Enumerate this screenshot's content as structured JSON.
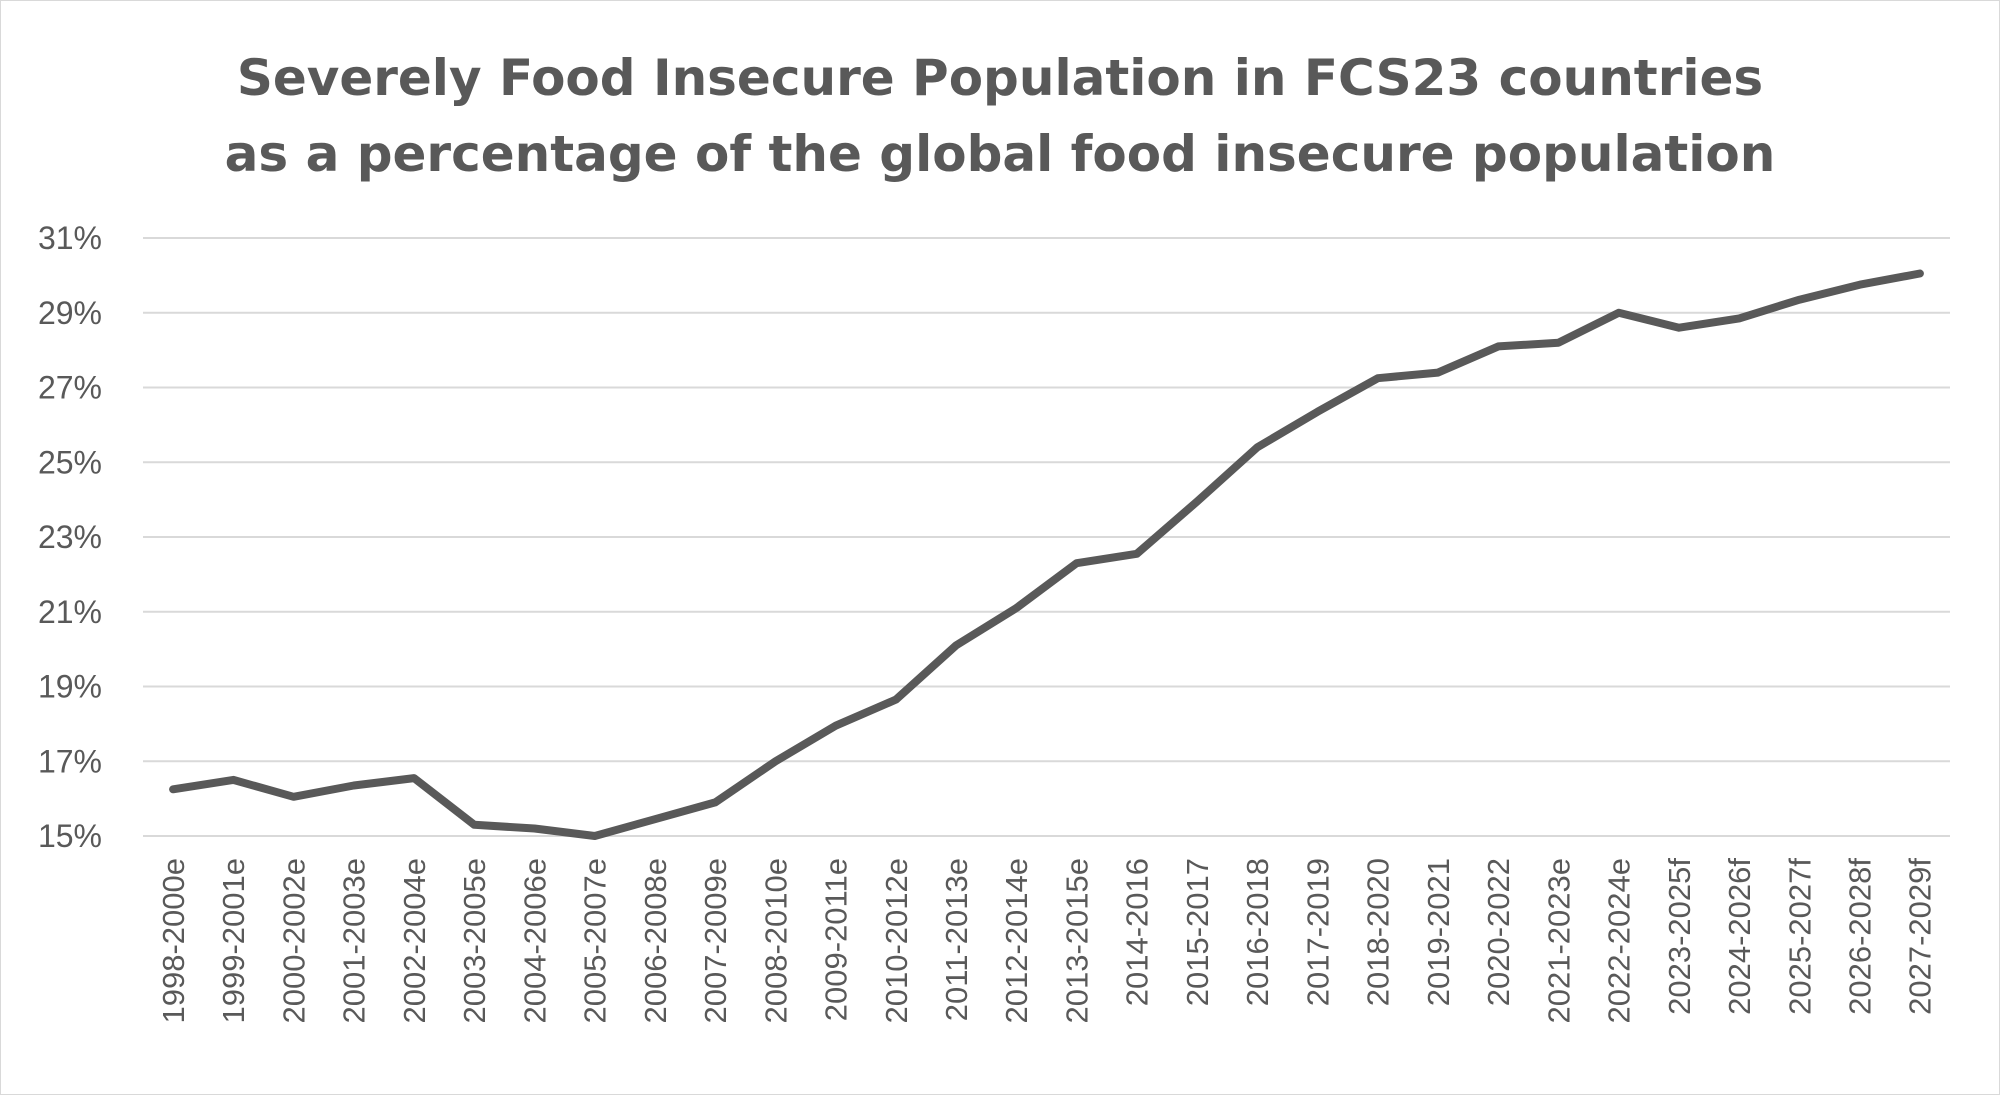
{
  "chart_data": {
    "type": "line",
    "title": "Severely Food Insecure Population in FCS23 countries",
    "subtitle": "as a percentage of the global food insecure population",
    "xlabel": "",
    "ylabel": "",
    "ylim": [
      15,
      31
    ],
    "y_ticks": [
      "15%",
      "17%",
      "19%",
      "21%",
      "23%",
      "25%",
      "27%",
      "29%",
      "31%"
    ],
    "y_tick_values": [
      15,
      17,
      19,
      21,
      23,
      25,
      27,
      29,
      31
    ],
    "grid": true,
    "legend": "none",
    "line_color": "#595959",
    "categories": [
      "1998-2000e",
      "1999-2001e",
      "2000-2002e",
      "2001-2003e",
      "2002-2004e",
      "2003-2005e",
      "2004-2006e",
      "2005-2007e",
      "2006-2008e",
      "2007-2009e",
      "2008-2010e",
      "2009-2011e",
      "2010-2012e",
      "2011-2013e",
      "2012-2014e",
      "2013-2015e",
      "2014-2016",
      "2015-2017",
      "2016-2018",
      "2017-2019",
      "2018-2020",
      "2019-2021",
      "2020-2022",
      "2021-2023e",
      "2022-2024e",
      "2023-2025f",
      "2024-2026f",
      "2025-2027f",
      "2026-2028f",
      "2027-2029f"
    ],
    "series": [
      {
        "values": [
          16.25,
          16.5,
          16.05,
          16.35,
          16.55,
          15.3,
          15.2,
          15.0,
          15.45,
          15.9,
          17.0,
          17.95,
          18.65,
          20.1,
          21.1,
          22.3,
          22.55,
          23.95,
          25.4,
          26.35,
          27.25,
          27.4,
          28.1,
          28.2,
          29.0,
          28.6,
          28.85,
          29.35,
          29.75,
          30.05
        ]
      }
    ]
  }
}
